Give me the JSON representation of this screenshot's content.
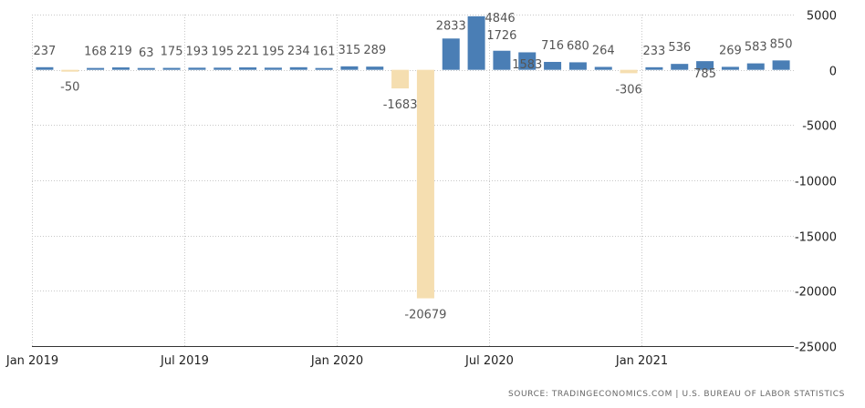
{
  "chart_data": {
    "type": "bar",
    "title": "",
    "xlabel": "",
    "ylabel": "",
    "categories": [
      "Jan 2019",
      "Feb 2019",
      "Mar 2019",
      "Apr 2019",
      "May 2019",
      "Jun 2019",
      "Jul 2019",
      "Aug 2019",
      "Sep 2019",
      "Oct 2019",
      "Nov 2019",
      "Dec 2019",
      "Jan 2020",
      "Feb 2020",
      "Mar 2020",
      "Apr 2020",
      "May 2020",
      "Jun 2020",
      "Jul 2020",
      "Aug 2020",
      "Sep 2020",
      "Oct 2020",
      "Nov 2020",
      "Dec 2020",
      "Jan 2021",
      "Feb 2021",
      "Mar 2021",
      "Apr 2021",
      "May 2021",
      "Jun 2021"
    ],
    "values": [
      237,
      -50,
      168,
      219,
      63,
      175,
      193,
      195,
      221,
      195,
      234,
      161,
      315,
      289,
      -1683,
      -20679,
      2833,
      4846,
      1726,
      1583,
      716,
      680,
      264,
      -306,
      233,
      536,
      785,
      269,
      583,
      850
    ],
    "value_labels": [
      "237",
      "-50",
      "168",
      "219",
      "63",
      "175",
      "193",
      "195",
      "221",
      "195",
      "234",
      "161",
      "315",
      "289",
      "-1683",
      "-20679",
      "2833",
      "4846",
      "1726",
      "1583",
      "716",
      "680",
      "264",
      "-306",
      "233",
      "536",
      "785",
      "269",
      "583",
      "850"
    ],
    "x_tick_labels": [
      "Jan 2019",
      "Jul 2019",
      "Jan 2020",
      "Jul 2020",
      "Jan 2021"
    ],
    "ylim": [
      -25000,
      5000
    ],
    "y_ticks": [
      5000,
      0,
      -5000,
      -10000,
      -15000,
      -20000,
      -25000
    ],
    "y_tick_labels": [
      "5000",
      "0",
      "-5000",
      "-10000",
      "-15000",
      "-20000",
      "-25000"
    ],
    "y_axis_side": "right",
    "grid": true,
    "colors": {
      "positive": "#4a7eb5",
      "negative": "#f5deb0"
    }
  },
  "source": "SOURCE: TRADINGECONOMICS.COM | U.S. BUREAU OF LABOR STATISTICS"
}
